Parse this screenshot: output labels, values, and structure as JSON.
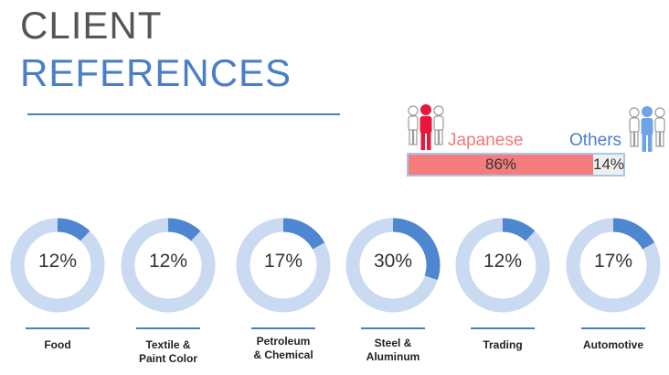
{
  "header": {
    "title_line1": "CLIENT",
    "title_line2": "REFERENCES"
  },
  "split": {
    "japanese_label": "Japanese",
    "japanese_value": "86%",
    "japanese_fraction": 0.86,
    "others_label": "Others",
    "others_value": "14%",
    "japanese_color": "#f47c7c",
    "others_color": "#4a7fc8"
  },
  "colors": {
    "title_dark": "#555555",
    "accent_blue": "#4a7fc8",
    "ring_light": "#c9daf1",
    "ring_fill": "#4f86d0",
    "people_red": "#e8173d",
    "people_blue": "#6fa3e8",
    "people_grey": "#cfcfcf"
  },
  "icons": [
    "people-group-red-icon",
    "people-group-blue-icon"
  ],
  "sectors": [
    {
      "label": "Food",
      "value": "12%",
      "fraction": 0.12
    },
    {
      "label": "Textile & Paint Color",
      "value": "12%",
      "fraction": 0.12
    },
    {
      "label": "Petroleum & Chemical",
      "value": "17%",
      "fraction": 0.17
    },
    {
      "label": "Steel & Aluminum",
      "value": "30%",
      "fraction": 0.3
    },
    {
      "label": "Trading",
      "value": "12%",
      "fraction": 0.12
    },
    {
      "label": "Automotive",
      "value": "17%",
      "fraction": 0.17
    }
  ]
}
